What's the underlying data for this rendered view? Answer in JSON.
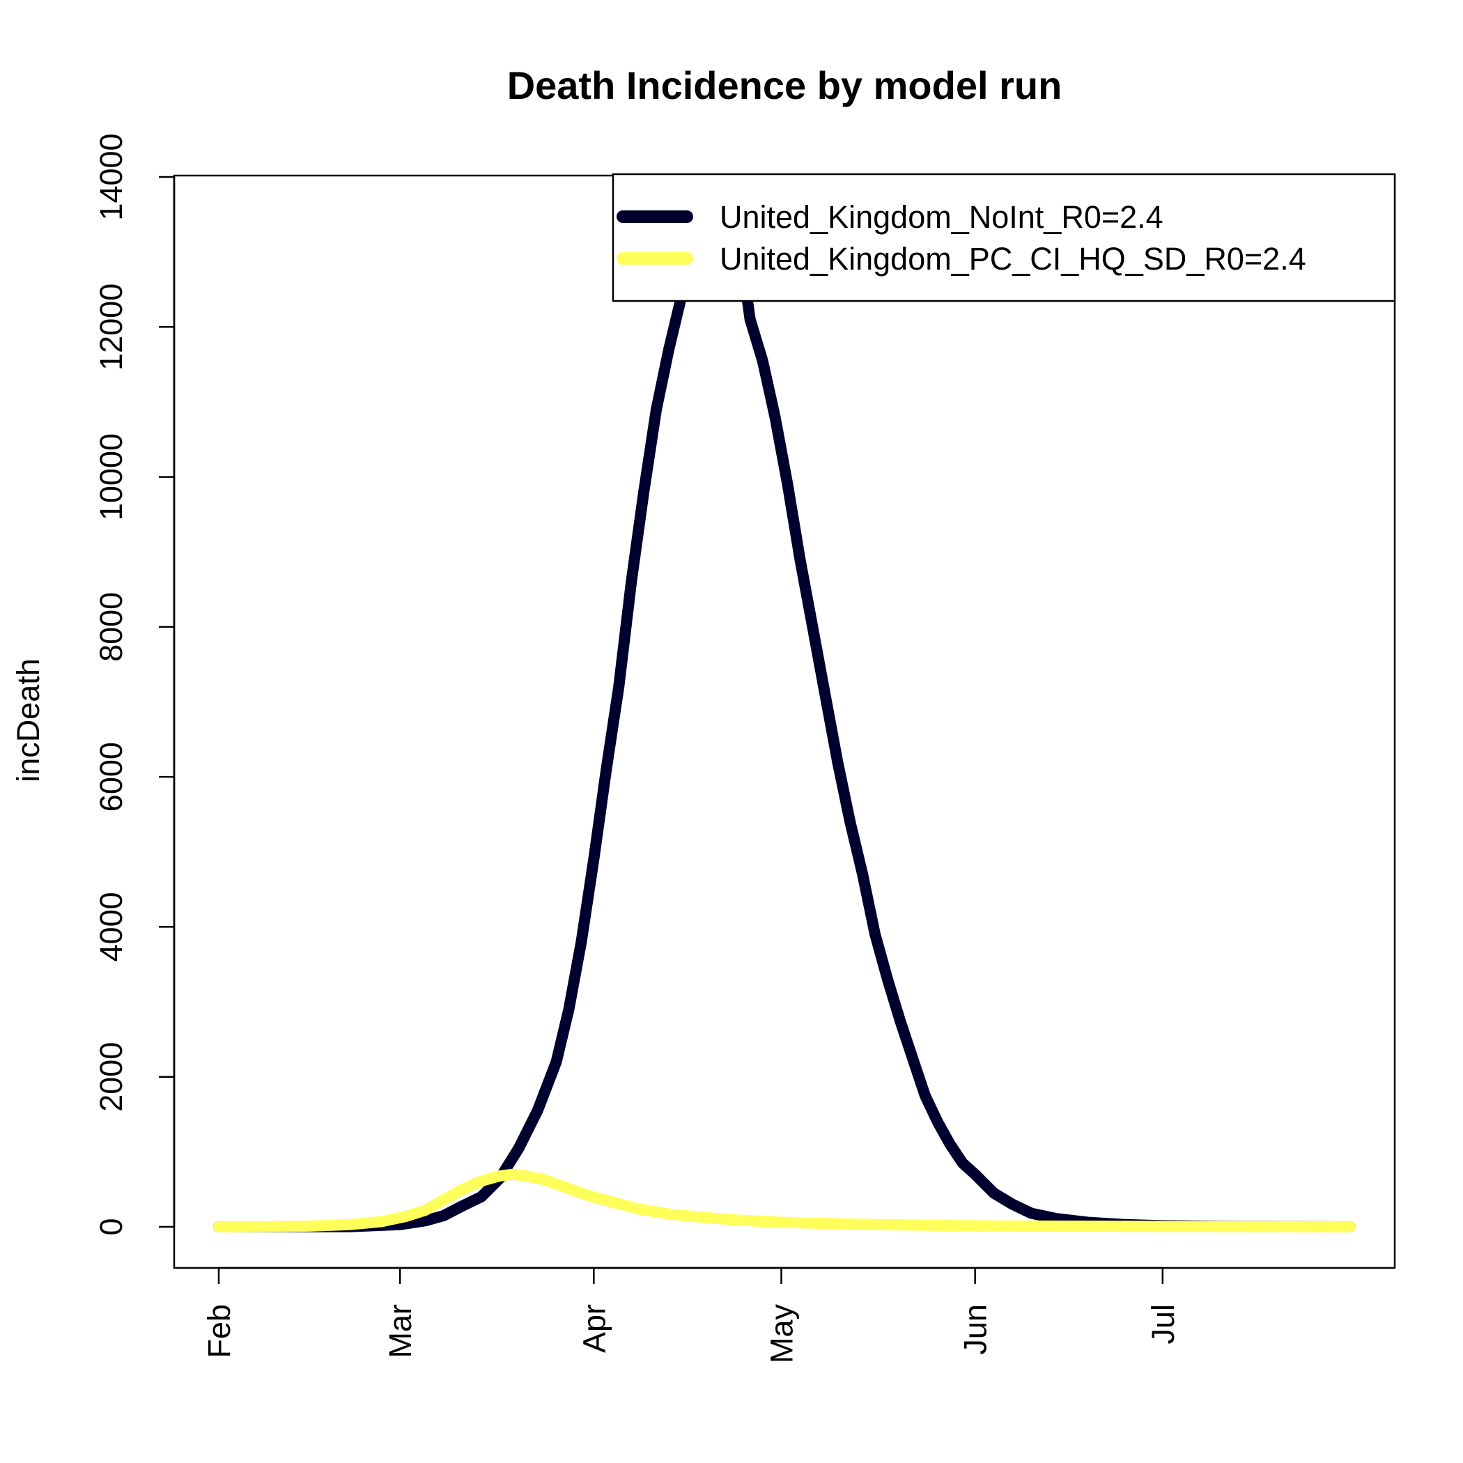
{
  "chart_data": {
    "type": "line",
    "title": "Death Incidence by model run",
    "xlabel": "",
    "ylabel": "incDeath",
    "x_range": [
      "2020-02-01",
      "2020-07-31"
    ],
    "x_ticks": [
      {
        "date": "2020-02-01",
        "label": "Feb"
      },
      {
        "date": "2020-03-01",
        "label": "Mar"
      },
      {
        "date": "2020-04-01",
        "label": "Apr"
      },
      {
        "date": "2020-05-01",
        "label": "May"
      },
      {
        "date": "2020-06-01",
        "label": "Jun"
      },
      {
        "date": "2020-07-01",
        "label": "Jul"
      }
    ],
    "ylim": [
      -700,
      14000
    ],
    "y_ticks": [
      0,
      2000,
      4000,
      6000,
      8000,
      10000,
      12000,
      14000
    ],
    "grid": false,
    "legend_position": "top-right",
    "series": [
      {
        "name": "United_Kingdom_NoInt_R0=2.4",
        "color": "#00002e",
        "points": [
          [
            "2020-02-01",
            0
          ],
          [
            "2020-02-08",
            0
          ],
          [
            "2020-02-15",
            1
          ],
          [
            "2020-02-22",
            3
          ],
          [
            "2020-03-01",
            30
          ],
          [
            "2020-03-05",
            80
          ],
          [
            "2020-03-08",
            150
          ],
          [
            "2020-03-11",
            280
          ],
          [
            "2020-03-14",
            400
          ],
          [
            "2020-03-17",
            650
          ],
          [
            "2020-03-20",
            1050
          ],
          [
            "2020-03-23",
            1550
          ],
          [
            "2020-03-26",
            2200
          ],
          [
            "2020-03-28",
            2900
          ],
          [
            "2020-03-30",
            3800
          ],
          [
            "2020-04-01",
            4900
          ],
          [
            "2020-04-03",
            6100
          ],
          [
            "2020-04-05",
            7200
          ],
          [
            "2020-04-07",
            8600
          ],
          [
            "2020-04-09",
            9800
          ],
          [
            "2020-04-11",
            10900
          ],
          [
            "2020-04-13",
            11700
          ],
          [
            "2020-04-15",
            12400
          ],
          [
            "2020-04-16",
            12700
          ],
          [
            "2020-04-25",
            12700
          ],
          [
            "2020-04-26",
            12100
          ],
          [
            "2020-04-28",
            11550
          ],
          [
            "2020-04-30",
            10800
          ],
          [
            "2020-05-02",
            9900
          ],
          [
            "2020-05-04",
            8900
          ],
          [
            "2020-05-06",
            8000
          ],
          [
            "2020-05-08",
            7100
          ],
          [
            "2020-05-10",
            6200
          ],
          [
            "2020-05-12",
            5400
          ],
          [
            "2020-05-14",
            4700
          ],
          [
            "2020-05-16",
            3900
          ],
          [
            "2020-05-18",
            3300
          ],
          [
            "2020-05-20",
            2750
          ],
          [
            "2020-05-22",
            2250
          ],
          [
            "2020-05-24",
            1750
          ],
          [
            "2020-05-26",
            1400
          ],
          [
            "2020-05-28",
            1100
          ],
          [
            "2020-05-30",
            850
          ],
          [
            "2020-06-01",
            700
          ],
          [
            "2020-06-04",
            450
          ],
          [
            "2020-06-07",
            300
          ],
          [
            "2020-06-10",
            180
          ],
          [
            "2020-06-14",
            110
          ],
          [
            "2020-06-19",
            60
          ],
          [
            "2020-06-25",
            30
          ],
          [
            "2020-07-01",
            15
          ],
          [
            "2020-07-10",
            6
          ],
          [
            "2020-07-20",
            2
          ],
          [
            "2020-07-31",
            0
          ]
        ]
      },
      {
        "name": "United_Kingdom_PC_CI_HQ_SD_R0=2.4",
        "color": "#ffff5c",
        "points": [
          [
            "2020-02-01",
            0
          ],
          [
            "2020-02-08",
            2
          ],
          [
            "2020-02-15",
            8
          ],
          [
            "2020-02-22",
            30
          ],
          [
            "2020-02-27",
            70
          ],
          [
            "2020-03-02",
            140
          ],
          [
            "2020-03-05",
            220
          ],
          [
            "2020-03-08",
            360
          ],
          [
            "2020-03-11",
            500
          ],
          [
            "2020-03-14",
            610
          ],
          [
            "2020-03-17",
            680
          ],
          [
            "2020-03-19",
            700
          ],
          [
            "2020-03-21",
            680
          ],
          [
            "2020-03-24",
            630
          ],
          [
            "2020-03-27",
            540
          ],
          [
            "2020-03-31",
            420
          ],
          [
            "2020-04-04",
            330
          ],
          [
            "2020-04-08",
            240
          ],
          [
            "2020-04-13",
            170
          ],
          [
            "2020-04-18",
            130
          ],
          [
            "2020-04-24",
            90
          ],
          [
            "2020-05-01",
            60
          ],
          [
            "2020-05-08",
            45
          ],
          [
            "2020-05-16",
            30
          ],
          [
            "2020-05-25",
            20
          ],
          [
            "2020-06-05",
            12
          ],
          [
            "2020-06-20",
            8
          ],
          [
            "2020-07-05",
            4
          ],
          [
            "2020-07-31",
            0
          ]
        ]
      }
    ]
  }
}
